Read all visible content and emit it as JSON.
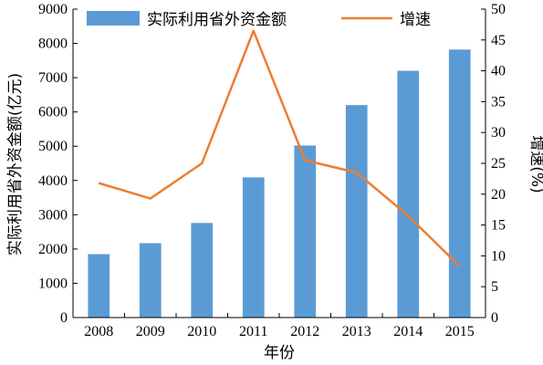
{
  "chart_data": {
    "type": "bar",
    "categories": [
      "2008",
      "2009",
      "2010",
      "2011",
      "2012",
      "2013",
      "2014",
      "2015"
    ],
    "series": [
      {
        "name": "实际利用省外资金额",
        "type": "bar",
        "axis": "left",
        "color": "#5b9bd5",
        "values": [
          1850,
          2170,
          2760,
          4090,
          5020,
          6200,
          7200,
          7820
        ]
      },
      {
        "name": "增速",
        "type": "line",
        "axis": "right",
        "color": "#ed7d31",
        "values": [
          21.8,
          19.3,
          25.0,
          46.5,
          25.5,
          23.5,
          16.5,
          8.3
        ]
      }
    ],
    "xlabel": "年份",
    "ylabel": "实际利用省外资金额(亿元)",
    "y2label": "增速(%)",
    "ylim": [
      0,
      9000
    ],
    "y2lim": [
      0,
      50
    ],
    "yticks": [
      "0",
      "1000",
      "2000",
      "3000",
      "4000",
      "5000",
      "6000",
      "7000",
      "8000",
      "9000"
    ],
    "y2ticks": [
      "0",
      "5",
      "10",
      "15",
      "20",
      "25",
      "30",
      "35",
      "40",
      "45",
      "50"
    ],
    "legend_position": "top",
    "grid": false
  }
}
